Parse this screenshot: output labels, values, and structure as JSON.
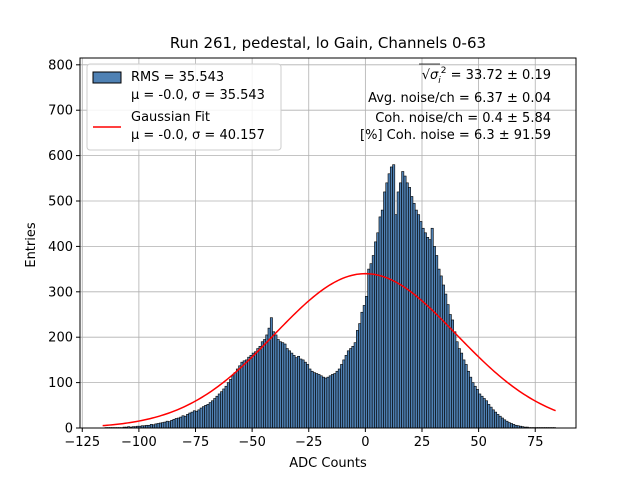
{
  "chart_data": {
    "type": "bar",
    "title": "Run 261, pedestal, lo Gain, Channels 0-63",
    "xlabel": "ADC Counts",
    "ylabel": "Entries",
    "xlim": [
      -126,
      93
    ],
    "ylim": [
      0,
      815
    ],
    "xticks": [
      -125,
      -100,
      -75,
      -50,
      -25,
      0,
      25,
      50,
      75
    ],
    "yticks": [
      0,
      100,
      200,
      300,
      400,
      500,
      600,
      700,
      800
    ],
    "grid": true,
    "bar_color": "#4f81b4",
    "bar_edge_color": "#000000",
    "fit_color": "#ff0000",
    "histogram": {
      "bin_start": -115,
      "bin_width": 1,
      "values": [
        1,
        1,
        1,
        1,
        1,
        1,
        1,
        1,
        2,
        2,
        3,
        2,
        3,
        3,
        4,
        4,
        5,
        5,
        6,
        6,
        8,
        7,
        9,
        10,
        11,
        12,
        13,
        15,
        14,
        17,
        19,
        21,
        22,
        24,
        27,
        26,
        30,
        33,
        35,
        38,
        37,
        40,
        44,
        47,
        50,
        52,
        56,
        60,
        65,
        70,
        75,
        80,
        86,
        92,
        100,
        107,
        115,
        122,
        130,
        137,
        145,
        148,
        150,
        156,
        160,
        165,
        168,
        175,
        180,
        190,
        195,
        205,
        220,
        243,
        212,
        205,
        195,
        190,
        188,
        185,
        175,
        170,
        165,
        160,
        155,
        158,
        152,
        150,
        145,
        140,
        130,
        125,
        122,
        120,
        118,
        115,
        112,
        110,
        112,
        115,
        118,
        120,
        125,
        130,
        140,
        150,
        160,
        170,
        175,
        180,
        188,
        215,
        230,
        255,
        270,
        290,
        350,
        362,
        380,
        410,
        430,
        465,
        480,
        520,
        540,
        560,
        575,
        580,
        470,
        520,
        540,
        565,
        555,
        540,
        530,
        510,
        495,
        480,
        470,
        455,
        440,
        430,
        420,
        415,
        440,
        400,
        380,
        350,
        335,
        315,
        295,
        272,
        250,
        238,
        212,
        190,
        175,
        165,
        150,
        140,
        125,
        112,
        100,
        92,
        85,
        75,
        70,
        65,
        60,
        52,
        46,
        40,
        35,
        30,
        26,
        22,
        18,
        15,
        12,
        10,
        8,
        6,
        5,
        4,
        3,
        2,
        2,
        1,
        1,
        1,
        1,
        1,
        1,
        1,
        1,
        1,
        1,
        1,
        1
      ]
    },
    "fit": {
      "mu": -0.0,
      "sigma": 40.157,
      "amplitude": 340,
      "x_range": [
        -116,
        84
      ]
    },
    "legend": {
      "placement": "upper-left",
      "entries": [
        {
          "kind": "patch",
          "line1": "RMS = 35.543",
          "line2": "μ = -0.0, σ = 35.543"
        },
        {
          "kind": "line",
          "line1": "Gaussian Fit",
          "line2": "μ = -0.0, σ = 40.157"
        }
      ]
    },
    "annotations": [
      {
        "lead": "√",
        "var": "σ",
        "sub": "i",
        "sup": "2",
        "text": " = 33.72 ± 0.19"
      },
      {
        "text": "Avg. noise/ch = 6.37 ± 0.04"
      },
      {
        "text": "Coh. noise/ch = 0.4 ± 5.84"
      },
      {
        "text": "[%] Coh. noise = 6.3 ± 91.59"
      }
    ]
  }
}
